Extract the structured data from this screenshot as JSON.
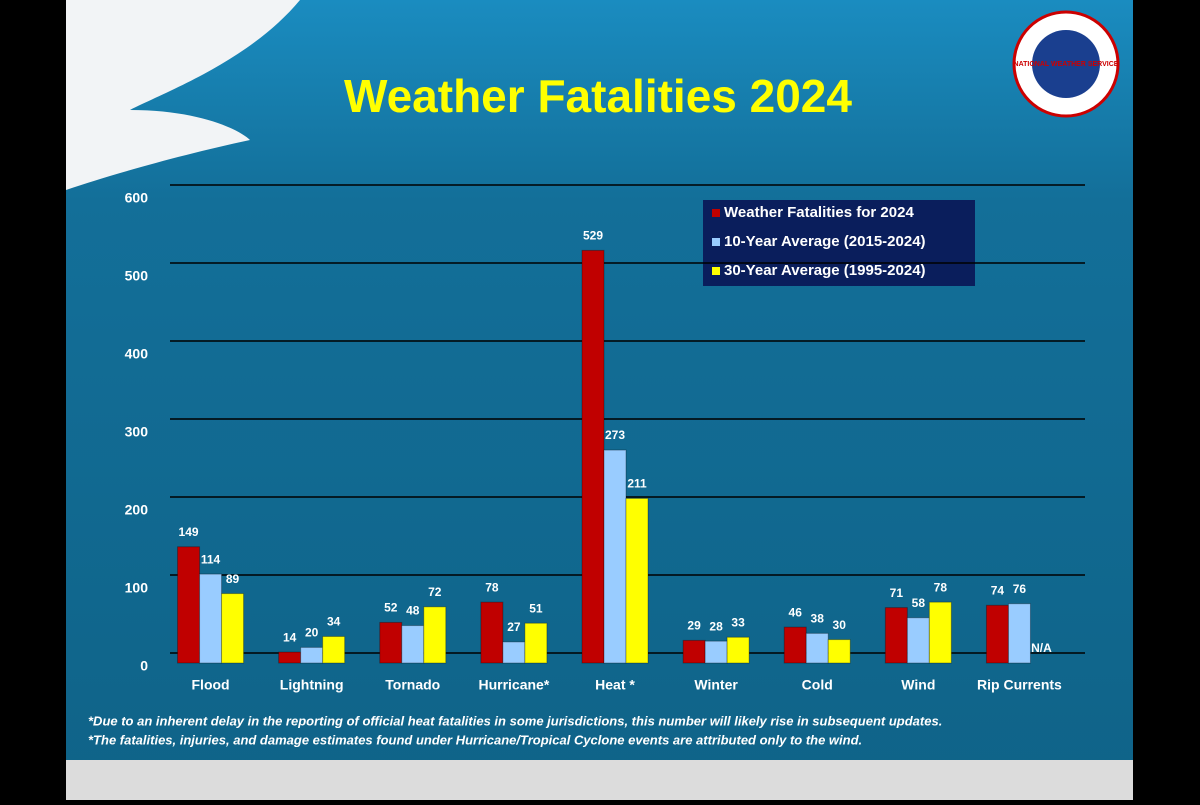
{
  "logo_text": "NATIONAL WEATHER SERVICE",
  "chart_data": {
    "type": "bar",
    "title": "Weather Fatalities 2024",
    "categories": [
      "Flood",
      "Lightning",
      "Tornado",
      "Hurricane*",
      "Heat *",
      "Winter",
      "Cold",
      "Wind",
      "Rip Currents"
    ],
    "series": [
      {
        "name": "Weather Fatalities for 2024",
        "color": "#c00000",
        "values": [
          149,
          14,
          52,
          78,
          529,
          29,
          46,
          71,
          74
        ]
      },
      {
        "name": "10-Year Average (2015-2024)",
        "color": "#99ccff",
        "values": [
          114,
          20,
          48,
          27,
          273,
          28,
          38,
          58,
          76
        ]
      },
      {
        "name": "30-Year Average (1995-2024)",
        "color": "#ffff00",
        "values": [
          89,
          34,
          72,
          51,
          211,
          33,
          30,
          78,
          null
        ],
        "value_labels": [
          "89",
          "34",
          "72",
          "51",
          "211",
          "33",
          "30",
          "78",
          "N/A"
        ]
      }
    ],
    "ylim": [
      0,
      600
    ],
    "yticks": [
      0,
      100,
      200,
      300,
      400,
      500,
      600
    ],
    "grid": true,
    "legend": "upper-right",
    "footnotes": [
      "*Due to an inherent delay in the reporting of official heat fatalities in some jurisdictions, this number will likely rise in subsequent updates.",
      "*The fatalities, injuries, and damage estimates found under Hurricane/Tropical Cyclone events are attributed only to the wind."
    ]
  }
}
